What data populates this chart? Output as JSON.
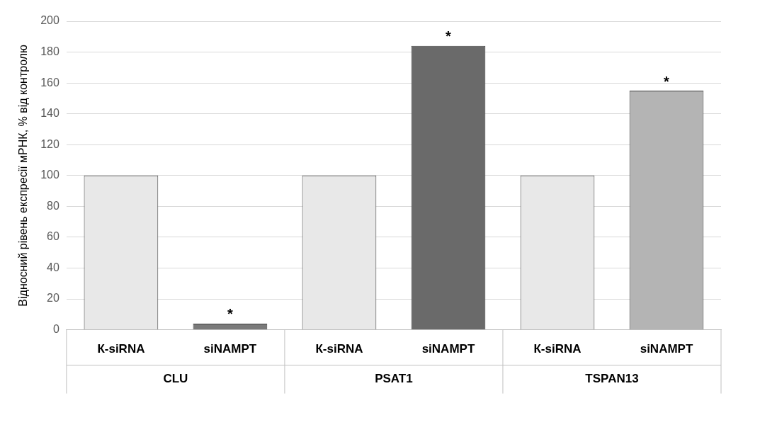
{
  "chart_data": {
    "type": "bar",
    "ylabel": "Відносний рівень експресії мРНК, % від контролю",
    "categories": [
      "К-siRNA",
      "siNAMPT",
      "К-siRNA",
      "siNAMPT",
      "К-siRNA",
      "siNAMPT"
    ],
    "values": [
      100,
      4,
      100,
      184,
      100,
      155
    ],
    "colors": [
      "#e8e8e8",
      "#7a7a7a",
      "#e8e8e8",
      "#6a6a6a",
      "#e8e8e8",
      "#b4b4b4"
    ],
    "value_labels": [
      null,
      "*",
      null,
      "*",
      null,
      "*"
    ],
    "annotations": [
      "CLU",
      "PSAT1",
      "TSPAN13"
    ],
    "ylim": [
      0,
      200
    ],
    "yticks": [
      0,
      20,
      40,
      60,
      80,
      100,
      120,
      140,
      160,
      180,
      200
    ],
    "grid": "y",
    "legend": false
  }
}
